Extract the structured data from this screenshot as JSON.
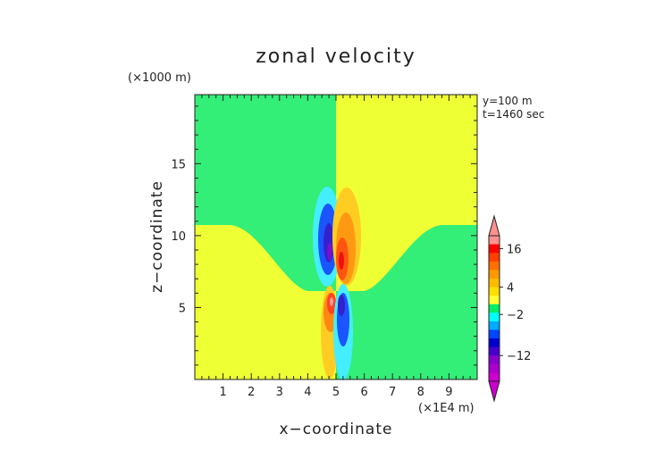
{
  "chart_data": {
    "type": "heatmap",
    "title": "zonal velocity",
    "xlabel": "x−coordinate",
    "ylabel": "z−coordinate",
    "x_units": "(×1E4 m)",
    "y_units": "(×1000 m)",
    "annotations": [
      "y=100 m",
      "t=1460 sec"
    ],
    "xlim": [
      0,
      10
    ],
    "ylim": [
      0,
      19.8
    ],
    "x_ticks": [
      "1",
      "2",
      "3",
      "4",
      "5",
      "6",
      "7",
      "8",
      "9"
    ],
    "y_ticks": [
      "5",
      "10",
      "15"
    ],
    "colorbar": {
      "tick_labels": [
        "16",
        "4",
        "−2",
        "−12"
      ],
      "colors": [
        "#ff9090",
        "#ff0000",
        "#ff4000",
        "#ff7000",
        "#ff9900",
        "#ffbb00",
        "#ffdd00",
        "#ffff33",
        "#00ee66",
        "#00ffff",
        "#00aaff",
        "#0044ff",
        "#0000cc",
        "#4400cc",
        "#8800cc",
        "#aa00cc",
        "#cc00cc"
      ]
    },
    "regions": {
      "lower_left_value": "positive (yellow)",
      "upper_left_value": "near zero (green)",
      "upper_right_value": "positive (yellow)",
      "lower_right_value": "near zero (green)",
      "interface_height_far": 10.8,
      "interface_height_center": 6.3
    },
    "features": [
      {
        "sign": "negative",
        "center": [
          4.65,
          9.4
        ],
        "peak": -14
      },
      {
        "sign": "positive",
        "center": [
          5.2,
          8.6
        ],
        "peak": 16
      },
      {
        "sign": "positive",
        "center": [
          4.85,
          5.6
        ],
        "peak": 18
      },
      {
        "sign": "negative",
        "center": [
          5.2,
          4.2
        ],
        "peak": -12
      }
    ]
  }
}
